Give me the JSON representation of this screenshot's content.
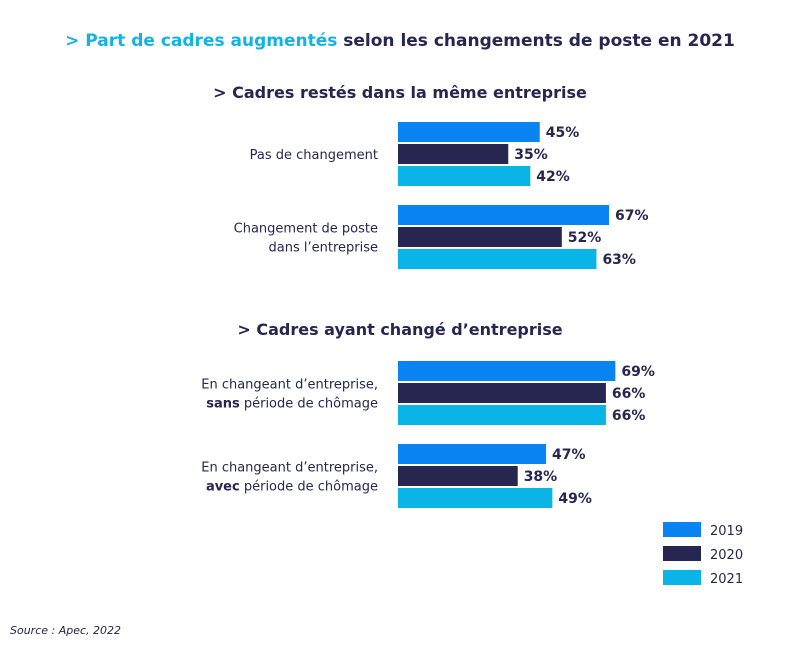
{
  "title": {
    "accent": "> Part de cadres augmentés",
    "rest": " selon les changements de poste en 2021"
  },
  "source": "Source : Apec, 2022",
  "colors": {
    "2019": "#0b84f3",
    "2020": "#262650",
    "2021": "#0ab4e6",
    "text": "#262650",
    "accent": "#12b4e6"
  },
  "chart_data": {
    "type": "bar",
    "orientation": "horizontal",
    "unit": "%",
    "series_names": [
      "2019",
      "2020",
      "2021"
    ],
    "legend_position": "bottom-right",
    "groups": [
      {
        "section": "> Cadres restés dans la même entreprise",
        "categories": [
          {
            "label_lines": [
              [
                {
                  "t": "Pas de changement",
                  "b": false
                }
              ]
            ],
            "values": [
              45,
              35,
              42
            ],
            "labels": [
              "45%",
              "35%",
              "42%"
            ]
          },
          {
            "label_lines": [
              [
                {
                  "t": "Changement de poste",
                  "b": false
                }
              ],
              [
                {
                  "t": "dans l’entreprise",
                  "b": false
                }
              ]
            ],
            "values": [
              67,
              52,
              63
            ],
            "labels": [
              "67%",
              "52%",
              "63%"
            ]
          }
        ]
      },
      {
        "section": "> Cadres ayant changé d’entreprise",
        "categories": [
          {
            "label_lines": [
              [
                {
                  "t": "En changeant d’entreprise,",
                  "b": false
                }
              ],
              [
                {
                  "t": "sans",
                  "b": true
                },
                {
                  "t": " période de chômage",
                  "b": false
                }
              ]
            ],
            "values": [
              69,
              66,
              66
            ],
            "labels": [
              "69%",
              "66%",
              "66%"
            ]
          },
          {
            "label_lines": [
              [
                {
                  "t": "En changeant d’entreprise,",
                  "b": false
                }
              ],
              [
                {
                  "t": "avec",
                  "b": true
                },
                {
                  "t": " période de chômage",
                  "b": false
                }
              ]
            ],
            "values": [
              47,
              38,
              49
            ],
            "labels": [
              "47%",
              "38%",
              "49%"
            ]
          }
        ]
      }
    ]
  }
}
